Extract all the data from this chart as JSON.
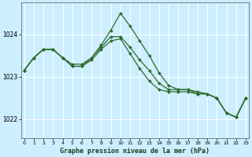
{
  "background_color": "#cceeff",
  "grid_color": "#ffffff",
  "line_color": "#2d6b2d",
  "marker": "D",
  "marker_size": 2.0,
  "line_width": 0.9,
  "title": "Graphe pression niveau de la mer (hPa)",
  "xlim": [
    -0.3,
    23.3
  ],
  "ylim": [
    1021.55,
    1024.75
  ],
  "yticks": [
    1022,
    1023,
    1024
  ],
  "xticks": [
    0,
    1,
    2,
    3,
    4,
    5,
    6,
    7,
    8,
    9,
    10,
    11,
    12,
    13,
    14,
    15,
    16,
    17,
    18,
    19,
    20,
    21,
    22,
    23
  ],
  "series": [
    [
      1023.15,
      1023.45,
      1023.65,
      1023.65,
      1023.45,
      1023.3,
      1023.3,
      1023.45,
      1023.75,
      1024.1,
      1024.5,
      1024.2,
      1023.85,
      1023.5,
      1023.1,
      1022.8,
      1022.7,
      1022.7,
      1022.65,
      1022.6,
      1022.5,
      1022.15,
      1022.05,
      1022.5
    ],
    [
      1023.15,
      1023.45,
      1023.65,
      1023.65,
      1023.45,
      1023.25,
      1023.25,
      1023.4,
      1023.65,
      1023.85,
      1023.9,
      1023.55,
      1023.2,
      1022.9,
      1022.7,
      1022.65,
      1022.65,
      1022.65,
      1022.6,
      1022.6,
      1022.5,
      1022.15,
      1022.05,
      1022.5
    ],
    [
      1023.15,
      1023.45,
      1023.65,
      1023.65,
      1023.45,
      1023.25,
      1023.25,
      1023.45,
      1023.7,
      1023.95,
      1023.95,
      1023.7,
      1023.4,
      1023.15,
      1022.85,
      1022.7,
      1022.7,
      1022.7,
      1022.6,
      1022.6,
      1022.5,
      1022.15,
      1022.05,
      1022.5
    ]
  ]
}
